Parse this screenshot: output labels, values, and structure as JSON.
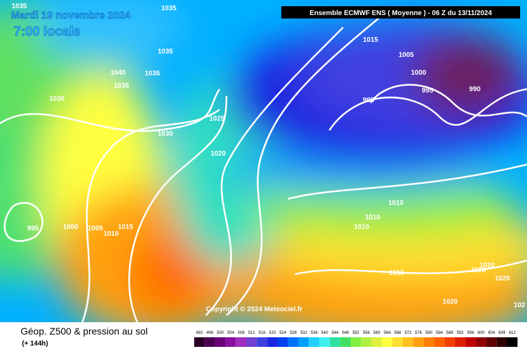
{
  "header": {
    "date": "Mardi 19 novembre 2024",
    "time": "7:00 locale",
    "model": "Ensemble ECMWF ENS  ( Moyenne )  -  06 Z du 13/11/2024"
  },
  "isobar_labels": [
    1035,
    1035,
    1035,
    1040,
    1035,
    1035,
    1030,
    1030,
    1025,
    1020,
    1015,
    1005,
    1000,
    995,
    990,
    995,
    995,
    1000,
    1005,
    1010,
    1015,
    1010,
    1010,
    1010,
    1015,
    1020,
    1020,
    1020,
    1020,
    102
  ],
  "copyright": "Copyright © 2024 Meteociel.fr",
  "footer": {
    "title": "Géop. Z500 & pression au sol",
    "subtitle": "(+ 144h)"
  },
  "scale": {
    "values": [
      492,
      496,
      500,
      504,
      508,
      512,
      516,
      520,
      524,
      528,
      532,
      536,
      540,
      544,
      548,
      552,
      556,
      560,
      564,
      568,
      572,
      576,
      580,
      584,
      588,
      592,
      596,
      600,
      604,
      608,
      612
    ],
    "colors": [
      "#2a002a",
      "#4a0050",
      "#6a0078",
      "#8a10a0",
      "#a030c0",
      "#7040d0",
      "#4040e0",
      "#1a28e0",
      "#0040f0",
      "#0070ff",
      "#00a0ff",
      "#20d0ff",
      "#40f0f0",
      "#30e0a0",
      "#40e060",
      "#80f040",
      "#b0f040",
      "#e0f040",
      "#ffff40",
      "#ffe030",
      "#ffc020",
      "#ffa010",
      "#ff8000",
      "#ff6000",
      "#f04000",
      "#e02000",
      "#c00000",
      "#900000",
      "#600000",
      "#300000",
      "#000000"
    ]
  }
}
